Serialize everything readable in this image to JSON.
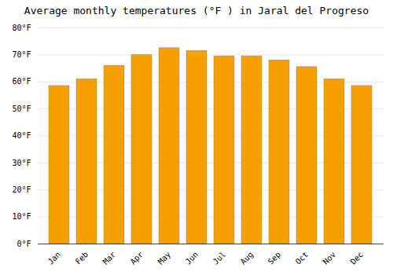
{
  "chart_data": {
    "type": "bar",
    "title": "Average monthly temperatures (°F ) in Jaral del Progreso",
    "categories": [
      "Jan",
      "Feb",
      "Mar",
      "Apr",
      "May",
      "Jun",
      "Jul",
      "Aug",
      "Sep",
      "Oct",
      "Nov",
      "Dec"
    ],
    "values": [
      58.5,
      61,
      66,
      70,
      72.5,
      71.5,
      69.5,
      69.5,
      68,
      65.5,
      61,
      58.5
    ],
    "color": "#F5A000",
    "ylim": [
      0,
      80
    ],
    "yticks": [
      {
        "value": 0,
        "label": "0°F"
      },
      {
        "value": 10,
        "label": "10°F"
      },
      {
        "value": 20,
        "label": "20°F"
      },
      {
        "value": 30,
        "label": "30°F"
      },
      {
        "value": 40,
        "label": "40°F"
      },
      {
        "value": 50,
        "label": "50°F"
      },
      {
        "value": 60,
        "label": "60°F"
      },
      {
        "value": 70,
        "label": "70°F"
      },
      {
        "value": 80,
        "label": "80°F"
      }
    ],
    "grid": true
  }
}
